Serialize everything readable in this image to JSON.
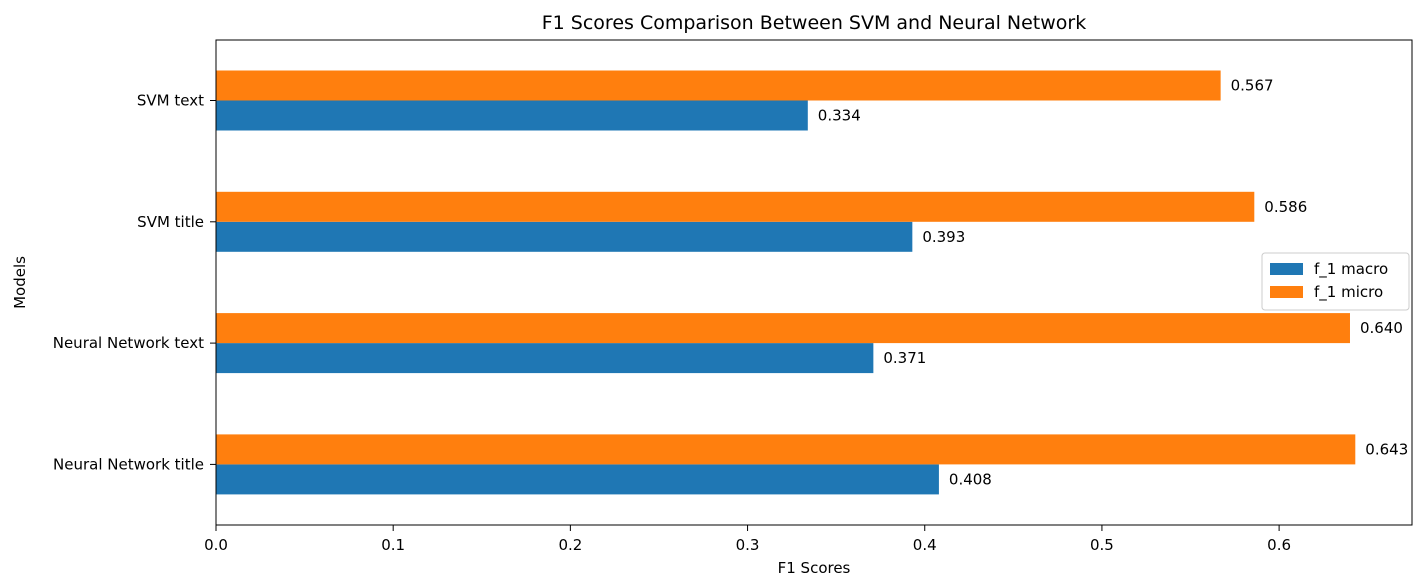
{
  "chart_data": {
    "type": "bar",
    "orientation": "horizontal",
    "title": "F1 Scores Comparison Between SVM and Neural Network",
    "xlabel": "F1 Scores",
    "ylabel": "Models",
    "categories": [
      "SVM text",
      "SVM title",
      "Neural Network text",
      "Neural Network title"
    ],
    "series": [
      {
        "name": "f_1 macro",
        "color": "#1f77b4",
        "values": [
          0.334,
          0.393,
          0.371,
          0.408
        ],
        "labels": [
          "0.334",
          "0.393",
          "0.371",
          "0.408"
        ]
      },
      {
        "name": "f_1 micro",
        "color": "#ff7f0e",
        "values": [
          0.567,
          0.586,
          0.64,
          0.643
        ],
        "labels": [
          "0.567",
          "0.586",
          "0.640",
          "0.643"
        ]
      }
    ],
    "xlim": [
      0.0,
      0.675
    ],
    "xticks": [
      0.0,
      0.1,
      0.2,
      0.3,
      0.4,
      0.5,
      0.6
    ],
    "xtick_labels": [
      "0.0",
      "0.1",
      "0.2",
      "0.3",
      "0.4",
      "0.5",
      "0.6"
    ],
    "grid": false,
    "legend_position": "center-right"
  }
}
